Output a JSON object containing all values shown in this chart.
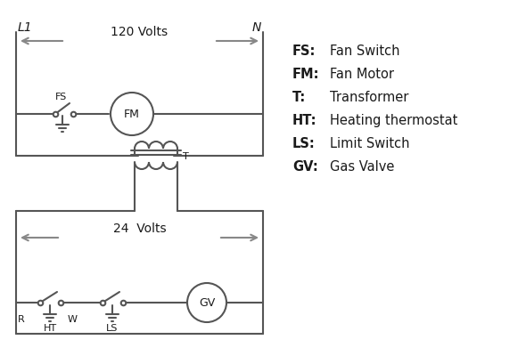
{
  "bg_color": "#ffffff",
  "line_color": "#555555",
  "arrow_color": "#888888",
  "text_color": "#1a1a1a",
  "legend_items": [
    [
      "FS:",
      "Fan Switch"
    ],
    [
      "FM:",
      "Fan Motor"
    ],
    [
      "T:",
      "Transformer"
    ],
    [
      "HT:",
      "Heating thermostat"
    ],
    [
      "LS:",
      "Limit Switch"
    ],
    [
      "GV:",
      "Gas Valve"
    ]
  ],
  "L1_label": "L1",
  "N_label": "N",
  "volts120_label": "120 Volts",
  "volts24_label": "24  Volts",
  "FS_label": "FS",
  "FM_label": "FM",
  "T_label": "T",
  "R_label": "R",
  "W_label": "W",
  "HT_label": "HT",
  "LS_label": "LS",
  "GV_label": "GV"
}
